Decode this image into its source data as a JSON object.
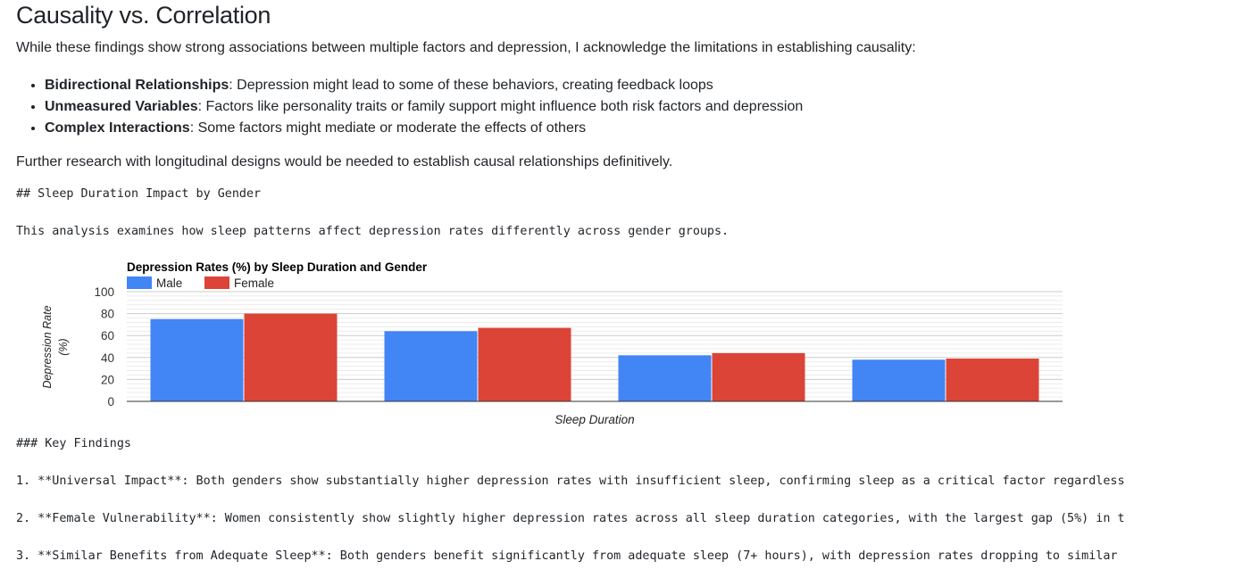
{
  "heading": "Causality vs. Correlation",
  "intro": "While these findings show strong associations between multiple factors and depression, I acknowledge the limitations in establishing causality:",
  "bullets": [
    {
      "title": "Bidirectional Relationships",
      "text": ": Depression might lead to some of these behaviors, creating feedback loops"
    },
    {
      "title": "Unmeasured Variables",
      "text": ": Factors like personality traits or family support might influence both risk factors and depression"
    },
    {
      "title": "Complex Interactions",
      "text": ": Some factors might mediate or moderate the effects of others"
    }
  ],
  "further": "Further research with longitudinal designs would be needed to establish causal relationships definitively.",
  "raw_lines": {
    "section_heading": "## Sleep Duration Impact by Gender",
    "section_intro": "This analysis examines how sleep patterns affect depression rates differently across gender groups.",
    "key_findings_heading": "### Key Findings",
    "finding_1": "1. **Universal Impact**: Both genders show substantially higher depression rates with insufficient sleep, confirming sleep as a critical factor regardless",
    "finding_2": "2. **Female Vulnerability**: Women consistently show slightly higher depression rates across all sleep duration categories, with the largest gap (5%) in t",
    "finding_3": "3. **Similar Benefits from Adequate Sleep**: Both genders benefit significantly from adequate sleep (7+ hours), with depression rates dropping to similar"
  },
  "colors": {
    "male": "#4285f4",
    "female": "#db4437"
  },
  "chart_data": {
    "type": "bar",
    "title": "Depression Rates (%) by Sleep Duration and Gender",
    "xlabel": "Sleep Duration",
    "ylabel": "Depression Rate (%)",
    "ylabel_lines": [
      "Depression Rate",
      "(%)"
    ],
    "ylim": [
      0,
      100
    ],
    "yticks": [
      0,
      20,
      40,
      60,
      80,
      100
    ],
    "categories": [
      "",
      "",
      "",
      ""
    ],
    "series": [
      {
        "name": "Male",
        "values": [
          75,
          64,
          42,
          38
        ]
      },
      {
        "name": "Female",
        "values": [
          80,
          67,
          44,
          39
        ]
      }
    ],
    "grid": true,
    "legend": "top-left"
  }
}
